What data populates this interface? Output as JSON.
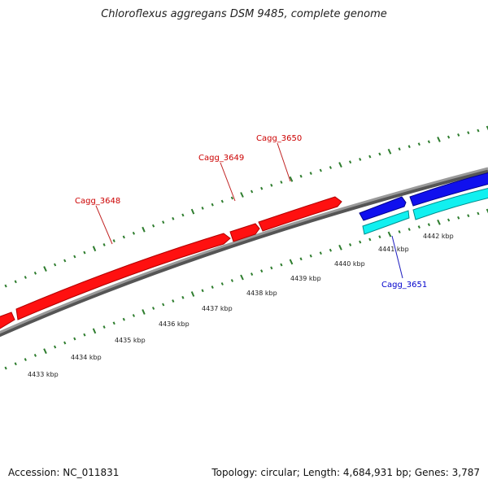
{
  "title": "Chloroflexus aggregans DSM 9485, complete genome",
  "footer": {
    "accession": "Accession: NC_011831",
    "summary": "Topology: circular; Length: 4,684,931 bp; Genes: 3,787"
  },
  "colors": {
    "forward_gene": "#ff0000",
    "reverse_gene": "#0000ee",
    "reverse_gene_secondary": "#00e5ee",
    "backbone": "#888888",
    "tick": "#2e7d2e",
    "forward_label": "#cc0000",
    "reverse_label": "#0000cc"
  },
  "scale_ticks": [
    {
      "label": "4433 kbp"
    },
    {
      "label": "4434 kbp"
    },
    {
      "label": "4435 kbp"
    },
    {
      "label": "4436 kbp"
    },
    {
      "label": "4437 kbp"
    },
    {
      "label": "4438 kbp"
    },
    {
      "label": "4439 kbp"
    },
    {
      "label": "4440 kbp"
    },
    {
      "label": "4441 kbp"
    },
    {
      "label": "4442 kbp"
    }
  ],
  "gene_labels": [
    {
      "label": "Cagg_3648",
      "strand": "forward"
    },
    {
      "label": "Cagg_3649",
      "strand": "forward"
    },
    {
      "label": "Cagg_3650",
      "strand": "forward"
    },
    {
      "label": "Cagg_3651",
      "strand": "reverse"
    }
  ]
}
